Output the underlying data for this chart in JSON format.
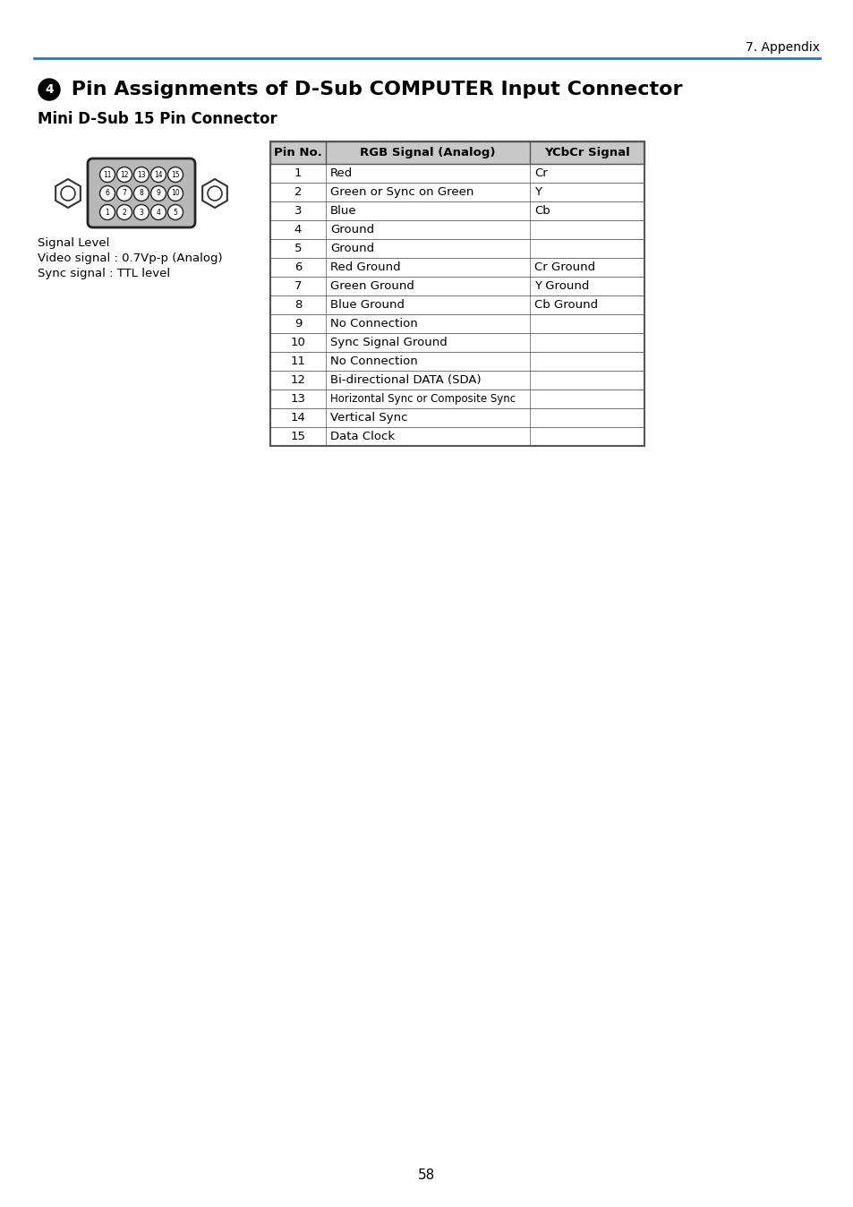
{
  "page_header": "7. Appendix",
  "header_line_color": "#2e75b6",
  "title_bullet": "4",
  "title_text": " Pin Assignments of D-Sub COMPUTER Input Connector",
  "subtitle": "Mini D-Sub 15 Pin Connector",
  "signal_level_lines": [
    "Signal Level",
    "Video signal : 0.7Vp-p (Analog)",
    "Sync signal : TTL level"
  ],
  "table_header": [
    "Pin No.",
    "RGB Signal (Analog)",
    "YCbCr Signal"
  ],
  "table_header_bg": "#c8c8c8",
  "table_rows": [
    [
      "1",
      "Red",
      "Cr"
    ],
    [
      "2",
      "Green or Sync on Green",
      "Y"
    ],
    [
      "3",
      "Blue",
      "Cb"
    ],
    [
      "4",
      "Ground",
      ""
    ],
    [
      "5",
      "Ground",
      ""
    ],
    [
      "6",
      "Red Ground",
      "Cr Ground"
    ],
    [
      "7",
      "Green Ground",
      "Y Ground"
    ],
    [
      "8",
      "Blue Ground",
      "Cb Ground"
    ],
    [
      "9",
      "No Connection",
      ""
    ],
    [
      "10",
      "Sync Signal Ground",
      ""
    ],
    [
      "11",
      "No Connection",
      ""
    ],
    [
      "12",
      "Bi-directional DATA (SDA)",
      ""
    ],
    [
      "13",
      "Horizontal Sync or Composite Sync",
      ""
    ],
    [
      "14",
      "Vertical Sync",
      ""
    ],
    [
      "15",
      "Data Clock",
      ""
    ]
  ],
  "row_alt_colors": [
    "#ffffff",
    "#ffffff"
  ],
  "table_border_color": "#555555",
  "page_number": "58",
  "connector_pins_row1": [
    "11",
    "12",
    "13",
    "14",
    "15"
  ],
  "connector_pins_row2": [
    "6",
    "7",
    "8",
    "9",
    "10"
  ],
  "connector_pins_row3": [
    "1",
    "2",
    "3",
    "4",
    "5"
  ]
}
